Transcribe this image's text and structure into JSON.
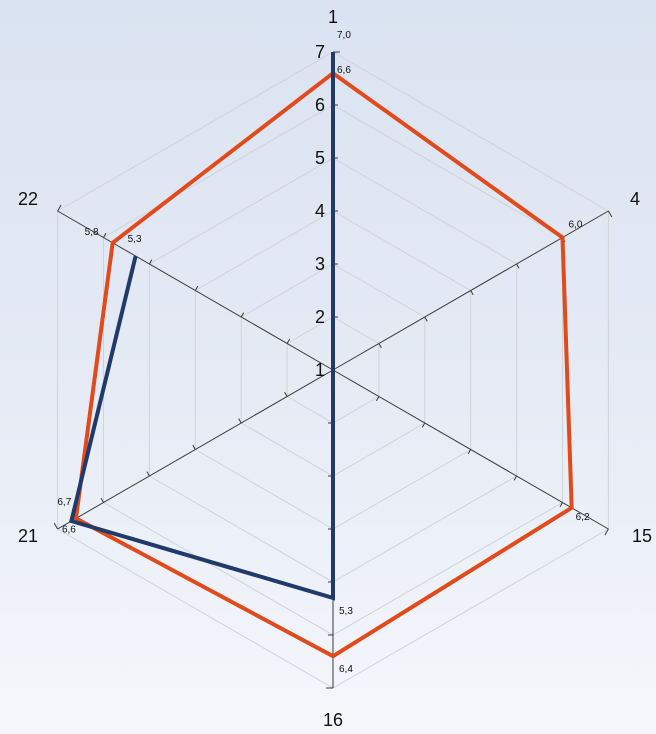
{
  "chart_data": {
    "type": "radar",
    "title": "",
    "axes": [
      "1",
      "4",
      "15",
      "16",
      "21",
      "22"
    ],
    "range": [
      1,
      7
    ],
    "scale_ticks": [
      "1",
      "2",
      "3",
      "4",
      "5",
      "6",
      "7"
    ],
    "grid": true,
    "legend": "none",
    "series": [
      {
        "color": "#e24a1b",
        "values": [
          6.6,
          6.0,
          6.2,
          6.4,
          6.6,
          5.8
        ],
        "value_labels": [
          "6,6",
          "6,0",
          "6,2",
          "6,4",
          "6,6",
          "5,8"
        ]
      },
      {
        "color": "#1f3a6b",
        "values": [
          7.0,
          null,
          null,
          5.3,
          6.7,
          5.3
        ],
        "value_labels": [
          "7,0",
          "",
          "",
          "5,3",
          "6,7",
          "5,3"
        ]
      }
    ]
  }
}
